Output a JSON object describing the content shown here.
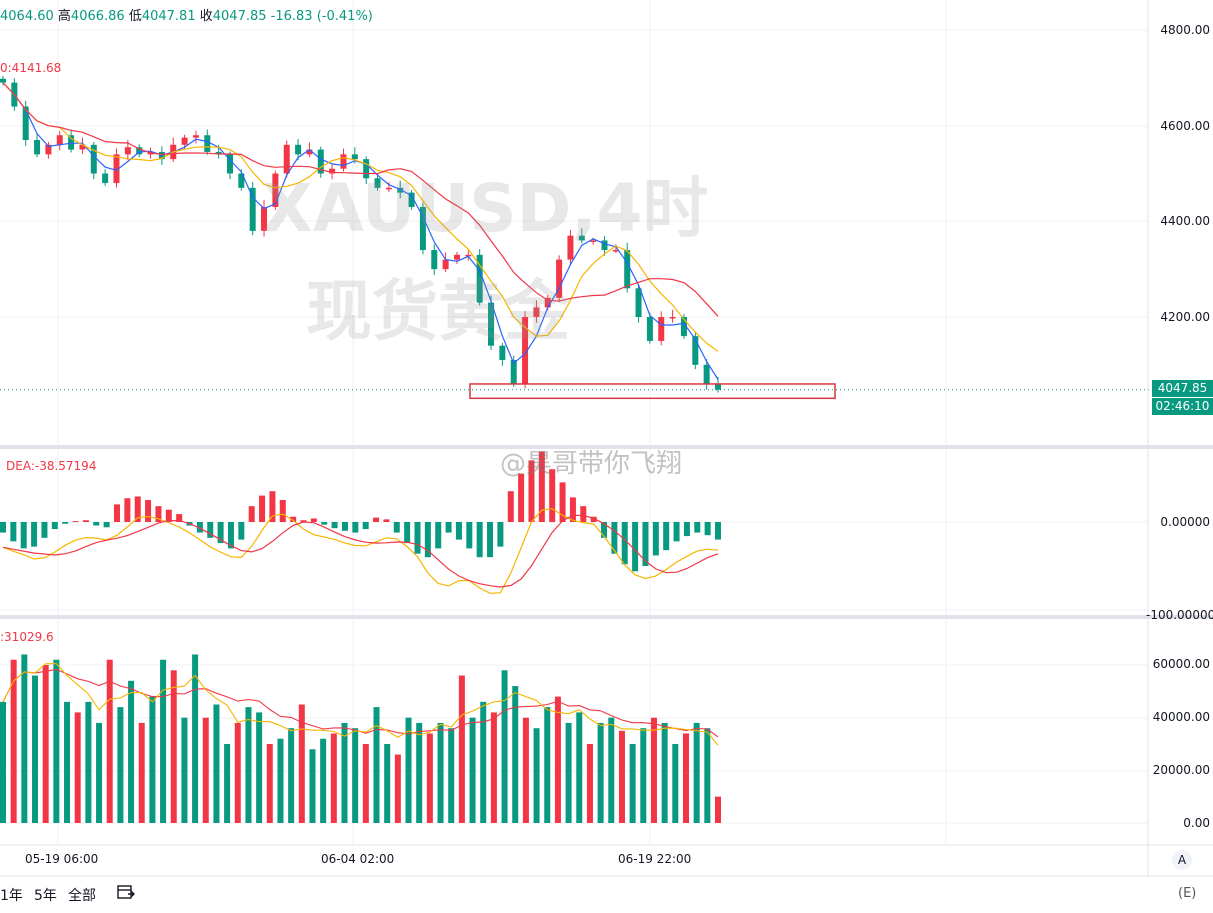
{
  "header": {
    "open_value": "4064.60",
    "high_label": "高",
    "high_value": "4066.86",
    "low_label": "低",
    "low_value": "4047.81",
    "close_label": "收",
    "close_value": "4047.85",
    "change_value": "-16.83",
    "change_pct": "(-0.41%)"
  },
  "ma_legend": "0:4141.68",
  "macd_legend": "DEA:-38.57194",
  "volume_legend": ":31029.6",
  "watermark": {
    "symbol_line": "XAUUSD,4时",
    "name_line": "现货黄金",
    "weibo": "@昊哥带你飞翔"
  },
  "price_axis": [
    "4800.00",
    "4600.00",
    "4400.00",
    "4200.00"
  ],
  "macd_axis": [
    "0.00000",
    "-100.00000"
  ],
  "volume_axis": [
    "60000.00",
    "40000.00",
    "20000.00",
    "0.00"
  ],
  "current_price": "4047.85",
  "countdown": "02:46:10",
  "time_axis": [
    "05-19 06:00",
    "06-04 02:00",
    "06-19 22:00"
  ],
  "toolbar": {
    "range_1y": "1年",
    "range_5y": "5年",
    "range_all": "全部",
    "date_range_icon": "calendar-range-icon",
    "auto_label": "A",
    "right_partial": "(E)"
  },
  "colors": {
    "up": "#f23645",
    "down": "#089981",
    "ma_fast": "#2962ff",
    "ma_mid": "#f7b500",
    "ma_slow": "#f23645",
    "support_box": "#d9363e"
  },
  "chart_data": [
    {
      "type": "candlestick",
      "symbol": "XAUUSD",
      "timeframe": "4时",
      "x_ticks": [
        "05-19 06:00",
        "06-04 02:00",
        "06-19 22:00"
      ],
      "ylim": [
        4000,
        4850
      ],
      "y_ticks": [
        4200,
        4400,
        4600,
        4800
      ],
      "last_close": 4047.85,
      "close_path": [
        4690,
        4640,
        4570,
        4540,
        4560,
        4580,
        4550,
        4560,
        4500,
        4480,
        4540,
        4555,
        4540,
        4545,
        4530,
        4560,
        4575,
        4580,
        4545,
        4540,
        4500,
        4470,
        4380,
        4430,
        4500,
        4560,
        4540,
        4550,
        4500,
        4510,
        4540,
        4530,
        4490,
        4470,
        4470,
        4460,
        4430,
        4340,
        4300,
        4320,
        4330,
        4330,
        4230,
        4140,
        4110,
        4060,
        4200,
        4220,
        4240,
        4320,
        4370,
        4360,
        4360,
        4340,
        4340,
        4260,
        4200,
        4150,
        4200,
        4200,
        4160,
        4100,
        4060,
        4048
      ],
      "moving_averages": [
        {
          "color": "#2962ff"
        },
        {
          "color": "#f7b500"
        },
        {
          "color": "#f23645",
          "last": 4141.68
        }
      ],
      "support_zone": [
        4030,
        4060
      ]
    },
    {
      "type": "bar",
      "indicator": "MACD",
      "ylim": [
        -160,
        120
      ],
      "y_ticks": [
        0,
        -100
      ],
      "dea_last": -38.57194,
      "histogram": [
        -12,
        -22,
        -30,
        -28,
        -18,
        -8,
        -2,
        1,
        2,
        -4,
        -6,
        20,
        27,
        29,
        25,
        18,
        14,
        9,
        -4,
        -12,
        -18,
        -24,
        -30,
        -20,
        18,
        30,
        35,
        25,
        6,
        2,
        4,
        -3,
        -7,
        -10,
        -12,
        -8,
        5,
        3,
        -12,
        -24,
        -36,
        -40,
        -30,
        -12,
        -20,
        -30,
        -40,
        -40,
        -28,
        35,
        55,
        70,
        80,
        60,
        45,
        28,
        18,
        6,
        -18,
        -36,
        -48,
        -56,
        -50,
        -38,
        -32,
        -22,
        -16,
        -12,
        -15,
        -20
      ]
    },
    {
      "type": "bar",
      "indicator": "Volume",
      "ylim": [
        0,
        70000
      ],
      "y_ticks": [
        0,
        20000,
        40000,
        60000
      ],
      "last_ma": 31029.6,
      "values": [
        46000,
        62000,
        64000,
        56000,
        60000,
        62000,
        46000,
        42000,
        46000,
        38000,
        62000,
        44000,
        54000,
        38000,
        48000,
        62000,
        58000,
        40000,
        64000,
        40000,
        45000,
        30000,
        38000,
        44000,
        42000,
        30000,
        32000,
        36000,
        45000,
        28000,
        32000,
        34000,
        38000,
        36000,
        30000,
        44000,
        30000,
        26000,
        40000,
        38000,
        34000,
        38000,
        36000,
        56000,
        40000,
        46000,
        42000,
        58000,
        52000,
        40000,
        36000,
        44000,
        48000,
        38000,
        42000,
        30000,
        38000,
        40000,
        35000,
        30000,
        36000,
        40000,
        38000,
        30000,
        34000,
        38000,
        36000,
        10000
      ]
    }
  ]
}
